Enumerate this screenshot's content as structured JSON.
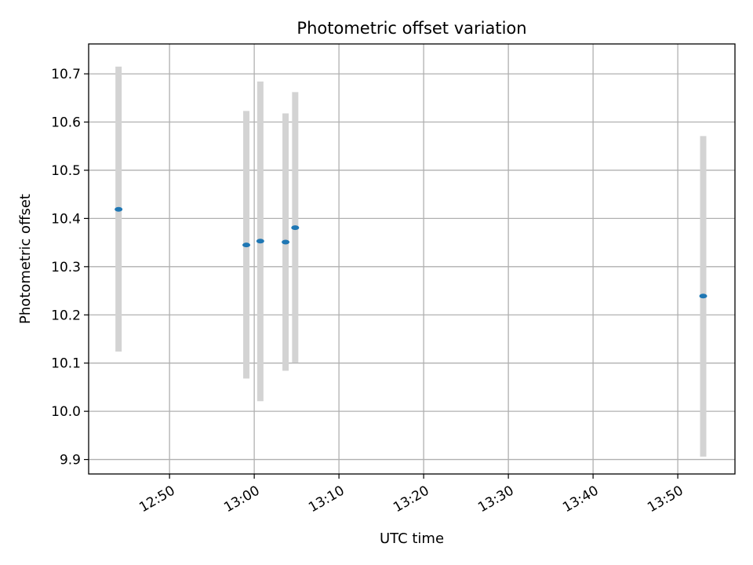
{
  "chart_data": {
    "type": "scatter",
    "title": "Photometric offset variation",
    "xlabel": "UTC time",
    "ylabel": "Photometric offset",
    "xlim": [
      "12:40:27",
      "13:56:45"
    ],
    "ylim": [
      9.87,
      10.762
    ],
    "grid": true,
    "x_ticks": [
      "12:50",
      "13:00",
      "13:10",
      "13:20",
      "13:30",
      "13:40",
      "13:50"
    ],
    "y_ticks": [
      "9.9",
      "10.0",
      "10.1",
      "10.2",
      "10.3",
      "10.4",
      "10.5",
      "10.6",
      "10.7"
    ],
    "points": [
      {
        "x": "12:43:59",
        "y": 10.419,
        "ylow": 10.124,
        "yhigh": 10.715
      },
      {
        "x": "12:59:04",
        "y": 10.345,
        "ylow": 10.068,
        "yhigh": 10.623
      },
      {
        "x": "13:00:43",
        "y": 10.353,
        "ylow": 10.021,
        "yhigh": 10.684
      },
      {
        "x": "13:03:42",
        "y": 10.351,
        "ylow": 10.084,
        "yhigh": 10.618
      },
      {
        "x": "13:04:50",
        "y": 10.381,
        "ylow": 10.101,
        "yhigh": 10.662
      },
      {
        "x": "13:53:00",
        "y": 10.239,
        "ylow": 9.906,
        "yhigh": 10.571
      }
    ],
    "colors": {
      "point": "#1f77b4",
      "errorbar": "#d3d3d3",
      "grid": "#b0b0b0",
      "axes": "#000000"
    }
  }
}
